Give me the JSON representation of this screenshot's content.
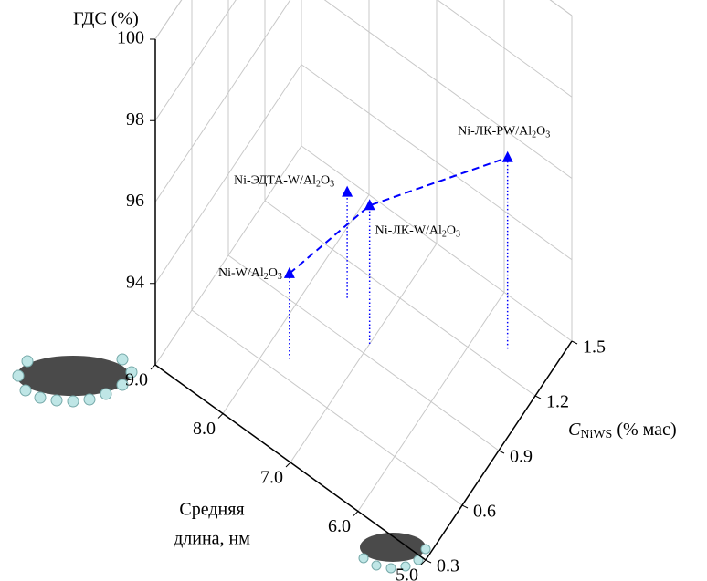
{
  "chart_data": {
    "type": "scatter3d",
    "zlabel": "ГДС (%)",
    "xlabel": [
      "Средняя",
      "длина, нм"
    ],
    "ylabel": {
      "main": "C",
      "sub": "NiWS",
      "rest": " (% мас)"
    },
    "xlim": [
      9,
      5
    ],
    "xticks": [
      {
        "value": 9,
        "label": "9.0"
      },
      {
        "value": 8,
        "label": "8.0"
      },
      {
        "value": 7,
        "label": "7.0"
      },
      {
        "value": 6,
        "label": "6.0"
      },
      {
        "value": 5,
        "label": "5.0"
      }
    ],
    "ylim": [
      0.3,
      1.5
    ],
    "yticks": [
      0.3,
      0.6,
      0.9,
      1.2,
      1.5
    ],
    "zlim": [
      92,
      100
    ],
    "zticks": [
      94,
      96,
      98,
      100
    ],
    "grid": true,
    "color": "#0000ff",
    "points": [
      {
        "label": "Ni-W/Al2O3",
        "x": 7.7,
        "y": 0.68,
        "z": 94.1,
        "connected": true
      },
      {
        "label": "Ni-ЭДТА-W/Al2O3",
        "x": 7.53,
        "y": 1.06,
        "z": 94.6,
        "connected": false
      },
      {
        "label": "Ni-ЛК-W/Al2O3",
        "x": 7.0,
        "y": 0.95,
        "z": 95.4,
        "connected": true
      },
      {
        "label": "Ni-ЛК-PW/Al2O3",
        "x": 5.59,
        "y": 1.3,
        "z": 96.7,
        "connected": true
      }
    ]
  }
}
